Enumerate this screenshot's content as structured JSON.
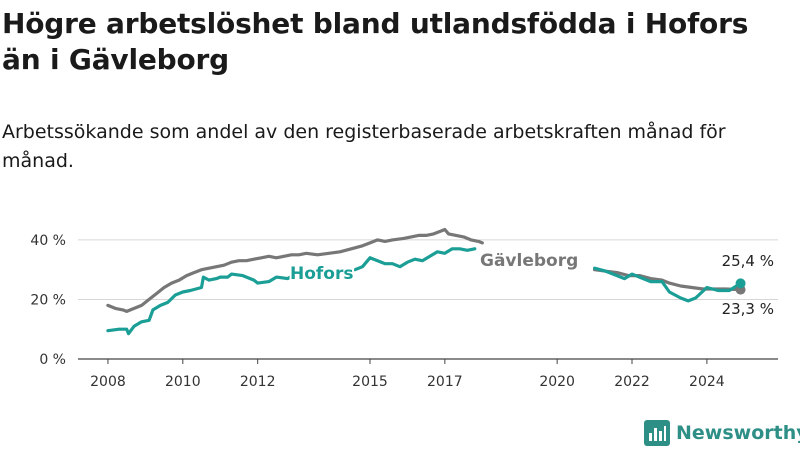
{
  "title": "Högre arbetslöshet bland utlandsfödda i Hofors än i Gävleborg",
  "subtitle": "Arbetssökande som andel av den registerbaserade arbetskraften månad för månad.",
  "brand": {
    "name": "Newsworthy",
    "color": "#2e8f87",
    "icon": "bar-chart-logo-icon"
  },
  "chart_data": {
    "type": "line",
    "y_tick_labels": [
      "0 %",
      "20 %",
      "40 %"
    ],
    "y_ticks": [
      0,
      20,
      40
    ],
    "x_tick_labels": [
      "2008",
      "2010",
      "2012",
      "2015",
      "2017",
      "2020",
      "2022",
      "2024"
    ],
    "x_ticks": [
      2008,
      2010,
      2012,
      2015,
      2017,
      2020,
      2022,
      2024
    ],
    "xlim": [
      2007.2,
      2025.9
    ],
    "ylim": [
      0,
      45
    ],
    "grid": "horizontal",
    "series": [
      {
        "name": "Hofors",
        "color": "#1a9e96",
        "end_label": "25,4 %",
        "points": [
          [
            2008.0,
            9.5
          ],
          [
            2008.3,
            10
          ],
          [
            2008.5,
            10
          ],
          [
            2008.55,
            8.5
          ],
          [
            2008.7,
            11
          ],
          [
            2008.9,
            12.5
          ],
          [
            2009.1,
            13
          ],
          [
            2009.2,
            16.5
          ],
          [
            2009.4,
            18
          ],
          [
            2009.6,
            19
          ],
          [
            2009.8,
            21.5
          ],
          [
            2010.0,
            22.5
          ],
          [
            2010.2,
            23
          ],
          [
            2010.5,
            24
          ],
          [
            2010.55,
            27.5
          ],
          [
            2010.7,
            26.5
          ],
          [
            2010.9,
            27
          ],
          [
            2011.0,
            27.5
          ],
          [
            2011.2,
            27.5
          ],
          [
            2011.3,
            28.5
          ],
          [
            2011.6,
            28
          ],
          [
            2011.9,
            26.5
          ],
          [
            2012.0,
            25.5
          ],
          [
            2012.3,
            26
          ],
          [
            2012.5,
            27.5
          ],
          [
            2012.8,
            27
          ],
          [
            2013.0,
            28.5
          ],
          [
            2013.2,
            29
          ]
        ],
        "points_b": [
          [
            2014.6,
            30
          ],
          [
            2014.8,
            31
          ],
          [
            2015.0,
            34
          ],
          [
            2015.2,
            33
          ],
          [
            2015.4,
            32
          ],
          [
            2015.6,
            32
          ],
          [
            2015.8,
            31
          ],
          [
            2016.0,
            32.5
          ],
          [
            2016.2,
            33.5
          ],
          [
            2016.4,
            33
          ],
          [
            2016.6,
            34.5
          ],
          [
            2016.8,
            36
          ],
          [
            2017.0,
            35.5
          ],
          [
            2017.2,
            37
          ],
          [
            2017.4,
            37
          ],
          [
            2017.6,
            36.5
          ],
          [
            2017.8,
            37
          ]
        ],
        "points_c": [
          [
            2021.0,
            30.5
          ],
          [
            2021.3,
            29.5
          ],
          [
            2021.6,
            28
          ],
          [
            2021.8,
            27
          ],
          [
            2022.0,
            28.5
          ],
          [
            2022.2,
            27.5
          ],
          [
            2022.5,
            26
          ],
          [
            2022.8,
            26
          ],
          [
            2023.0,
            22.5
          ],
          [
            2023.3,
            20.5
          ],
          [
            2023.5,
            19.5
          ],
          [
            2023.7,
            20.5
          ],
          [
            2024.0,
            24
          ],
          [
            2024.3,
            23
          ],
          [
            2024.6,
            23
          ],
          [
            2024.9,
            25.4
          ]
        ]
      },
      {
        "name": "Gävleborg",
        "color": "#777777",
        "end_label": "23,3 %",
        "points": [
          [
            2008.0,
            18
          ],
          [
            2008.2,
            17
          ],
          [
            2008.4,
            16.5
          ],
          [
            2008.5,
            16
          ],
          [
            2008.7,
            17
          ],
          [
            2008.9,
            18
          ],
          [
            2009.1,
            20
          ],
          [
            2009.3,
            22
          ],
          [
            2009.5,
            24
          ],
          [
            2009.7,
            25.5
          ],
          [
            2009.9,
            26.5
          ],
          [
            2010.1,
            28
          ],
          [
            2010.3,
            29
          ],
          [
            2010.5,
            30
          ],
          [
            2010.7,
            30.5
          ],
          [
            2010.9,
            31
          ],
          [
            2011.1,
            31.5
          ],
          [
            2011.3,
            32.5
          ],
          [
            2011.5,
            33
          ],
          [
            2011.7,
            33
          ],
          [
            2011.9,
            33.5
          ],
          [
            2012.1,
            34
          ],
          [
            2012.3,
            34.5
          ],
          [
            2012.5,
            34
          ],
          [
            2012.7,
            34.5
          ],
          [
            2012.9,
            35
          ],
          [
            2013.1,
            35
          ],
          [
            2013.3,
            35.5
          ],
          [
            2013.6,
            35
          ],
          [
            2013.9,
            35.5
          ],
          [
            2014.2,
            36
          ],
          [
            2014.5,
            37
          ],
          [
            2014.8,
            38
          ],
          [
            2015.0,
            39
          ],
          [
            2015.2,
            40
          ],
          [
            2015.4,
            39.5
          ],
          [
            2015.6,
            40
          ],
          [
            2015.9,
            40.5
          ],
          [
            2016.1,
            41
          ],
          [
            2016.3,
            41.5
          ],
          [
            2016.5,
            41.5
          ],
          [
            2016.7,
            42
          ],
          [
            2016.9,
            43
          ],
          [
            2017.0,
            43.5
          ],
          [
            2017.1,
            42
          ],
          [
            2017.3,
            41.5
          ],
          [
            2017.5,
            41
          ],
          [
            2017.7,
            40
          ],
          [
            2017.9,
            39.5
          ],
          [
            2018.0,
            39
          ]
        ],
        "points_b": [
          [
            2021.0,
            30
          ],
          [
            2021.3,
            29.5
          ],
          [
            2021.6,
            29
          ],
          [
            2021.9,
            28
          ],
          [
            2022.2,
            28
          ],
          [
            2022.5,
            27
          ],
          [
            2022.8,
            26.5
          ],
          [
            2023.0,
            25.5
          ],
          [
            2023.3,
            24.5
          ],
          [
            2023.6,
            24
          ],
          [
            2023.9,
            23.5
          ],
          [
            2024.2,
            23.5
          ],
          [
            2024.5,
            23.5
          ],
          [
            2024.9,
            23.3
          ]
        ]
      }
    ],
    "series_labels": [
      "Hofors",
      "Gävleborg"
    ]
  }
}
